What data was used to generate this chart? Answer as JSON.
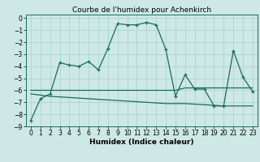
{
  "title": "Courbe de l'humidex pour Achenkirch",
  "xlabel": "Humidex (Indice chaleur)",
  "ylabel": "",
  "xlim": [
    -0.5,
    23.5
  ],
  "ylim": [
    -9,
    0.3
  ],
  "yticks": [
    0,
    -1,
    -2,
    -3,
    -4,
    -5,
    -6,
    -7,
    -8,
    -9
  ],
  "xticks": [
    0,
    1,
    2,
    3,
    4,
    5,
    6,
    7,
    8,
    9,
    10,
    11,
    12,
    13,
    14,
    15,
    16,
    17,
    18,
    19,
    20,
    21,
    22,
    23
  ],
  "bg_color": "#cde8e5",
  "grid_color": "#b0d8d4",
  "line_color": "#1a6b60",
  "line1_x": [
    0,
    1,
    2,
    3,
    4,
    5,
    6,
    7,
    8,
    9,
    10,
    11,
    12,
    13,
    14,
    15,
    16,
    17,
    18,
    19,
    20,
    21,
    22,
    23
  ],
  "line1_y": [
    -8.5,
    -6.7,
    -6.3,
    -3.7,
    -3.9,
    -4.0,
    -3.6,
    -4.3,
    -2.5,
    -0.45,
    -0.55,
    -0.55,
    -0.35,
    -0.55,
    -2.6,
    -6.5,
    -4.7,
    -5.9,
    -5.9,
    -7.3,
    -7.3,
    -2.7,
    -4.9,
    -6.1
  ],
  "line2_x": [
    0,
    1,
    2,
    3,
    4,
    5,
    6,
    7,
    8,
    9,
    10,
    11,
    12,
    13,
    14,
    15,
    16,
    17,
    18,
    19,
    20,
    21,
    22,
    23
  ],
  "line2_y": [
    -6.0,
    -6.0,
    -6.0,
    -6.0,
    -6.0,
    -6.0,
    -6.0,
    -6.0,
    -6.0,
    -6.0,
    -6.0,
    -6.0,
    -6.0,
    -6.0,
    -6.0,
    -6.0,
    -5.8,
    -5.8,
    -5.8,
    -5.8,
    -5.8,
    -5.8,
    -5.8,
    -5.8
  ],
  "line3_x": [
    0,
    1,
    2,
    3,
    4,
    5,
    6,
    7,
    8,
    9,
    10,
    11,
    12,
    13,
    14,
    15,
    16,
    17,
    18,
    19,
    20,
    21,
    22,
    23
  ],
  "line3_y": [
    -6.3,
    -6.4,
    -6.5,
    -6.55,
    -6.6,
    -6.65,
    -6.7,
    -6.75,
    -6.8,
    -6.85,
    -6.9,
    -6.95,
    -7.0,
    -7.05,
    -7.1,
    -7.1,
    -7.1,
    -7.15,
    -7.2,
    -7.25,
    -7.3,
    -7.3,
    -7.3,
    -7.3
  ],
  "title_fontsize": 6.5,
  "xlabel_fontsize": 6.5,
  "tick_fontsize": 5.5
}
